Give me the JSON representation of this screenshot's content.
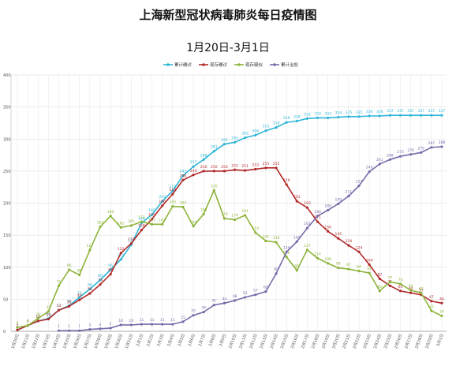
{
  "title": "上海新型冠状病毒肺炎每日疫情图",
  "subtitle": "1月20日-3月1日",
  "chart_data": {
    "type": "line",
    "ylim": [
      0,
      400
    ],
    "yticks": [
      0,
      50,
      100,
      150,
      200,
      250,
      300,
      350,
      400
    ],
    "grid": true,
    "legend_position": "top-right",
    "x": [
      "1月20日",
      "1月21日",
      "1月22日",
      "1月23日",
      "1月24日",
      "1月25日",
      "1月26日",
      "1月27日",
      "1月28日",
      "1月29日",
      "1月30日",
      "1月31日",
      "2月1日",
      "2月2日",
      "2月3日",
      "2月4日",
      "2月5日",
      "2月6日",
      "2月7日",
      "2月8日",
      "2月9日",
      "2月10日",
      "2月11日",
      "2月12日",
      "2月13日",
      "2月14日",
      "2月15日",
      "2月16日",
      "2月17日",
      "2月18日",
      "2月19日",
      "2月20日",
      "2月21日",
      "2月22日",
      "2月23日",
      "2月24日",
      "2月25日",
      "2月26日",
      "2月27日",
      "2月28日",
      "2月29日",
      "3月1日"
    ],
    "series": [
      {
        "name": "累计确诊",
        "color": "#2eb6d8",
        "values": [
          2,
          9,
          16,
          20,
          33,
          40,
          53,
          66,
          80,
          96,
          112,
          135,
          169,
          182,
          203,
          219,
          243,
          257,
          268,
          281,
          292,
          295,
          302,
          306,
          313,
          318,
          326,
          328,
          332,
          333,
          333,
          334,
          335,
          335,
          336,
          336,
          337,
          337,
          337,
          337,
          337,
          337
        ]
      },
      {
        "name": "现存确诊",
        "color": "#b22a2a",
        "values": [
          2,
          9,
          16,
          19,
          33,
          39,
          49,
          59,
          73,
          89,
          122,
          137,
          158,
          175,
          196,
          214,
          236,
          244,
          250,
          250,
          250,
          252,
          251,
          253,
          255,
          255,
          229,
          203,
          193,
          171,
          156,
          145,
          134,
          124,
          104,
          82,
          71,
          63,
          60,
          57,
          47,
          44
        ]
      },
      {
        "name": "现存疑似",
        "color": "#8db43a",
        "values": [
          6,
          9,
          20,
          31,
          71,
          96,
          88,
          127,
          163,
          180,
          162,
          165,
          171,
          167,
          167,
          195,
          194,
          164,
          183,
          220,
          176,
          174,
          181,
          154,
          141,
          139,
          116,
          95,
          127,
          114,
          106,
          99,
          97,
          94,
          91,
          63,
          77,
          74,
          64,
          60,
          32,
          24
        ]
      },
      {
        "name": "累计治愈",
        "color": "#7a6aaa",
        "values": [
          null,
          null,
          null,
          null,
          1,
          1,
          1,
          3,
          4,
          5,
          10,
          10,
          11,
          11,
          11,
          11,
          15,
          25,
          30,
          41,
          44,
          48,
          53,
          57,
          62,
          90,
          124,
          140,
          161,
          180,
          189,
          199,
          211,
          227,
          249,
          261,
          268,
          273,
          276,
          279,
          287,
          288
        ]
      }
    ]
  }
}
